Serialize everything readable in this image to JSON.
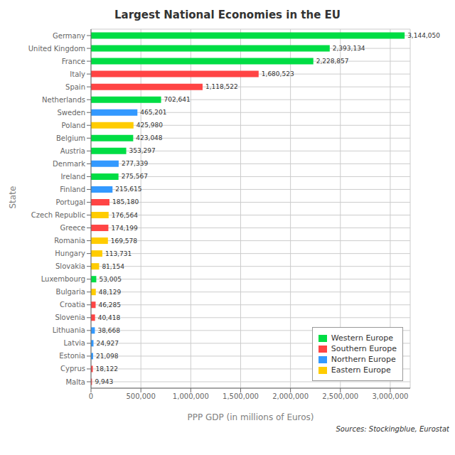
{
  "chart_data": {
    "type": "bar",
    "orientation": "horizontal",
    "title": "Largest National Economies in the EU",
    "xlabel": "PPP GDP (in millions of Euros)",
    "ylabel": "State",
    "annotations": [
      "Sources: Stockingblue, Eurostat"
    ],
    "categories": [
      "Germany",
      "United Kingdom",
      "France",
      "Italy",
      "Spain",
      "Netherlands",
      "Sweden",
      "Poland",
      "Belgium",
      "Austria",
      "Denmark",
      "Ireland",
      "Finland",
      "Portugal",
      "Czech Republic",
      "Greece",
      "Romania",
      "Hungary",
      "Slovakia",
      "Luxembourg",
      "Bulgaria",
      "Croatia",
      "Slovenia",
      "Lithuania",
      "Latvia",
      "Estonia",
      "Cyprus",
      "Malta"
    ],
    "series": [
      {
        "name": "Western Europe",
        "color": "#00dd44",
        "values": [
          3144050,
          2393134,
          2228857,
          null,
          null,
          702641,
          null,
          null,
          423048,
          353297,
          null,
          275567,
          null,
          null,
          null,
          null,
          null,
          null,
          null,
          53005,
          null,
          null,
          null,
          null,
          null,
          null,
          null,
          null
        ],
        "value_labels": [
          "3,144,050",
          "2,393,134",
          "2,228,857",
          null,
          null,
          "702,641",
          null,
          null,
          "423,048",
          "353,297",
          null,
          "275,567",
          null,
          null,
          null,
          null,
          null,
          null,
          null,
          "53,005",
          null,
          null,
          null,
          null,
          null,
          null,
          null,
          null
        ]
      },
      {
        "name": "Southern Europe",
        "color": "#ff4444",
        "values": [
          null,
          null,
          null,
          1680523,
          1118522,
          null,
          null,
          null,
          null,
          null,
          null,
          null,
          null,
          185180,
          null,
          174199,
          null,
          null,
          null,
          null,
          null,
          46285,
          40418,
          null,
          null,
          null,
          18122,
          9943
        ],
        "value_labels": [
          null,
          null,
          null,
          "1,680,523",
          "1,118,522",
          null,
          null,
          null,
          null,
          null,
          null,
          null,
          null,
          "185,180",
          null,
          "174,199",
          null,
          null,
          null,
          null,
          null,
          "46,285",
          "40,418",
          null,
          null,
          null,
          "18,122",
          "9,943"
        ]
      },
      {
        "name": "Northern Europe",
        "color": "#3399ff",
        "values": [
          null,
          null,
          null,
          null,
          null,
          null,
          465201,
          null,
          null,
          null,
          277339,
          null,
          215615,
          null,
          null,
          null,
          null,
          null,
          null,
          null,
          null,
          null,
          null,
          38668,
          24927,
          21098,
          null,
          null
        ],
        "value_labels": [
          null,
          null,
          null,
          null,
          null,
          null,
          "465,201",
          null,
          null,
          null,
          "277,339",
          null,
          "215,615",
          null,
          null,
          null,
          null,
          null,
          null,
          null,
          null,
          null,
          null,
          "38,668",
          "24,927",
          "21,098",
          null,
          null
        ]
      },
      {
        "name": "Eastern Europe",
        "color": "#ffcc00",
        "values": [
          null,
          null,
          null,
          null,
          null,
          null,
          null,
          425980,
          null,
          null,
          null,
          null,
          null,
          null,
          176564,
          null,
          169578,
          113731,
          81154,
          null,
          48129,
          null,
          null,
          null,
          null,
          null,
          null,
          null
        ],
        "value_labels": [
          null,
          null,
          null,
          null,
          null,
          null,
          null,
          "425,980",
          null,
          null,
          null,
          null,
          null,
          null,
          "176,564",
          null,
          "169,578",
          "113,731",
          "81,154",
          null,
          "48,129",
          null,
          null,
          null,
          null,
          null,
          null,
          null
        ]
      }
    ],
    "xlim": [
      0,
      3200000
    ],
    "xticks": [
      0,
      {
        "value": 500000,
        "label": "500,000"
      },
      {
        "value": 1000000,
        "label": "1,000,000"
      },
      {
        "value": 1500000,
        "label": "1,500,000"
      },
      {
        "value": 2000000,
        "label": "2,000,000"
      },
      {
        "value": 2500000,
        "label": "2,500,000"
      },
      {
        "value": 3000000,
        "label": "3,000,000"
      }
    ],
    "grid": true,
    "legend": "lower right",
    "data_labels": true
  }
}
